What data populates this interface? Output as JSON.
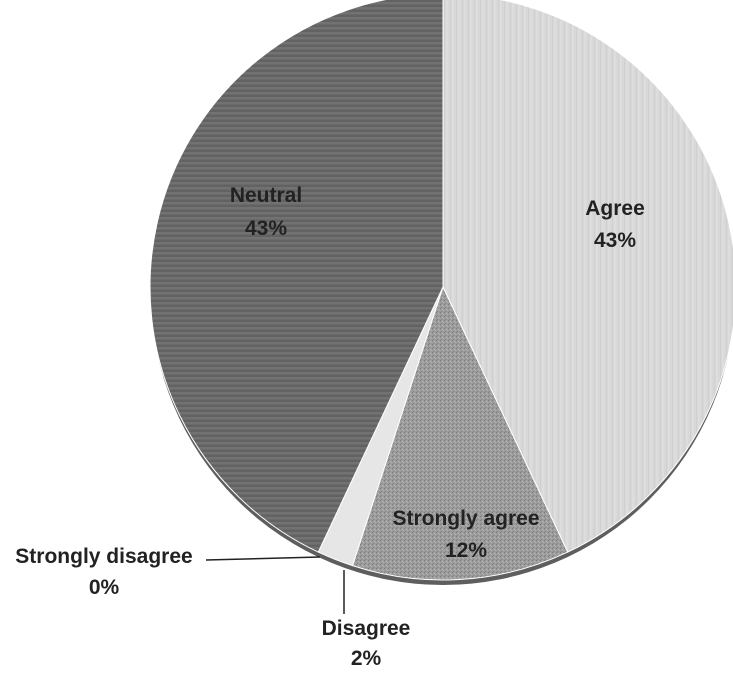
{
  "chart_data": {
    "type": "pie",
    "title": "",
    "slices": [
      {
        "label": "Agree",
        "value": 43,
        "value_label": "43%",
        "color": "#d6d6d6"
      },
      {
        "label": "Strongly agree",
        "value": 12,
        "value_label": "12%",
        "color": "#9a9a9a"
      },
      {
        "label": "Disagree",
        "value": 2,
        "value_label": "2%",
        "color": "#e4e4e4"
      },
      {
        "label": "Strongly disagree",
        "value": 0,
        "value_label": "0%",
        "color": "#c2c2c2"
      },
      {
        "label": "Neutral",
        "value": 43,
        "value_label": "43%",
        "color": "#6b6b6b"
      }
    ],
    "start_angle_deg": 0,
    "direction": "clockwise",
    "legend": "none",
    "labels_position": "on-slice-or-leader-line"
  }
}
